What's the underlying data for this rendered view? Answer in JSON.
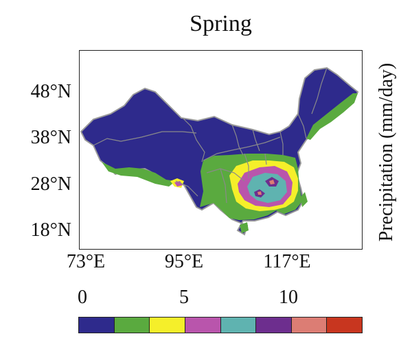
{
  "title": "Spring",
  "colorbar_label": "Precipitation (mm/day)",
  "lat_ticks": [
    "48°N",
    "38°N",
    "28°N",
    "18°N"
  ],
  "lon_ticks": [
    "73°E",
    "95°E",
    "117°E"
  ],
  "colorbar_ticks": [
    "0",
    "5",
    "10"
  ],
  "colorbar_colors": [
    "#2e2a8c",
    "#5aaa3f",
    "#f5ef2a",
    "#b955ac",
    "#5fb3b0",
    "#6d2e8e",
    "#dc7d74",
    "#c8361f"
  ],
  "region_colors": {
    "boundary": "#8a8a8a",
    "outline": "#9a9a9a"
  }
}
